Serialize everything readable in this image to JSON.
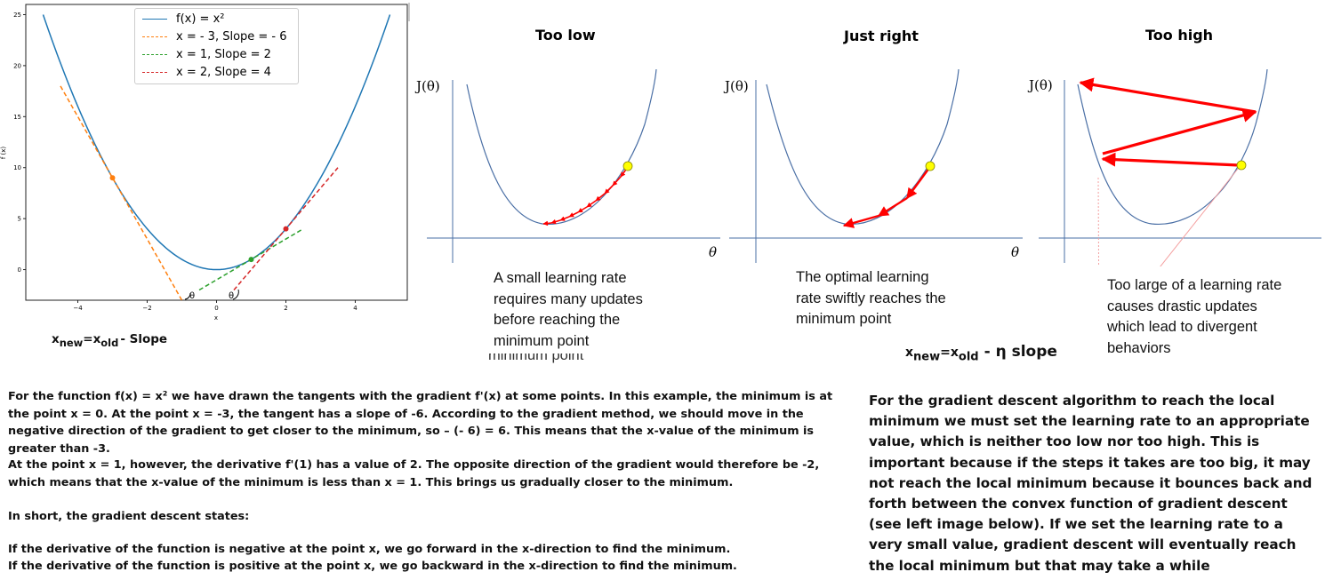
{
  "left_plot": {
    "ylabel": "f (x)",
    "xlabel": "x",
    "theta_label": "θ",
    "legend": [
      {
        "label": "f(x) = x²",
        "color": "#1f77b4",
        "dash": "solid"
      },
      {
        "label": "x = - 3, Slope = - 6",
        "color": "#ff7f0e",
        "dash": "dashed"
      },
      {
        "label": "x = 1, Slope = 2",
        "color": "#2ca02c",
        "dash": "dashed"
      },
      {
        "label": "x = 2, Slope = 4",
        "color": "#d62728",
        "dash": "dashed"
      }
    ]
  },
  "chart_data": {
    "type": "line",
    "title": "",
    "xlabel": "x",
    "ylabel": "f (x)",
    "xlim": [
      -5.5,
      5.5
    ],
    "ylim": [
      -3,
      26
    ],
    "xticks": [
      -4,
      -2,
      0,
      2,
      4
    ],
    "yticks": [
      0,
      5,
      10,
      15,
      20,
      25
    ],
    "grid": false,
    "legend_position": "top-center",
    "series": [
      {
        "name": "f(x) = x²",
        "function": "x^2",
        "x_range": [
          -5,
          5
        ]
      },
      {
        "name": "x = - 3, Slope = - 6",
        "point": [
          -3,
          9
        ],
        "slope": -6,
        "x_range": [
          -4.5,
          -1
        ]
      },
      {
        "name": "x = 1, Slope = 2",
        "point": [
          1,
          1
        ],
        "slope": 2,
        "x_range": [
          -0.5,
          2.5
        ]
      },
      {
        "name": "x = 2, Slope = 4",
        "point": [
          2,
          4
        ],
        "slope": 4,
        "x_range": [
          0.5,
          3.5
        ]
      }
    ],
    "points": [
      {
        "x": -3,
        "y": 9,
        "color": "#ff7f0e"
      },
      {
        "x": 1,
        "y": 1,
        "color": "#2ca02c"
      },
      {
        "x": 2,
        "y": 4,
        "color": "#d62728"
      }
    ]
  },
  "panels": [
    {
      "title": "Too low",
      "ylabel": "J(θ)",
      "xlabel": "θ",
      "caption": [
        "A small learning rate",
        "requires many updates",
        "before reaching the",
        "minimum point"
      ]
    },
    {
      "title": "Just right",
      "ylabel": "J(θ)",
      "xlabel": "θ",
      "caption": [
        "The optimal learning",
        "rate swiftly reaches the",
        "minimum point"
      ]
    },
    {
      "title": "Too high",
      "ylabel": "J(θ)",
      "xlabel": "",
      "caption": [
        "Too large of a learning rate",
        "causes drastic updates",
        "which lead to divergent",
        "behaviors"
      ]
    }
  ],
  "partial_text": "minimum point",
  "equations": {
    "left": {
      "x": "x",
      "new": "new",
      "eq": "=x",
      "old": "old",
      "rest": "- Slope"
    },
    "right": {
      "x": "x",
      "new": "new",
      "eq": "=x",
      "old": "old",
      "rest": "- η slope"
    }
  },
  "left_text": [
    "For the function f(x) = x² we have drawn the tangents with the gradient f'(x) at some points. In this example, the minimum is at the point x = 0. At the point x = -3, the tangent has a slope of -6. According to the gradient method, we should move in the negative direction of the gradient to get closer to the minimum, so – (- 6) = 6. This means that the x-value of the minimum is greater than -3.",
    "At the point x = 1, however, the derivative f'(1) has a value of 2. The opposite direction of the gradient would therefore be -2, which means that the x-value of the minimum is less than x = 1. This brings us gradually closer to the minimum.",
    "In short, the gradient descent states:",
    "If the derivative of the function is negative at the point x, we go forward in the x-direction to find the minimum.",
    "If the derivative of the function is positive at the point x, we go backward in the x-direction to find the minimum."
  ],
  "right_text": "For the gradient descent algorithm to reach the local minimum we must set the learning rate to an appropriate value, which is neither too low nor too high. This is important because if the steps it takes are too big, it may not reach the local minimum because it bounces back and forth between the convex function of gradient descent (see left image below). If we set the learning rate to a very small value, gradient descent will eventually reach the local minimum but that may take a while"
}
